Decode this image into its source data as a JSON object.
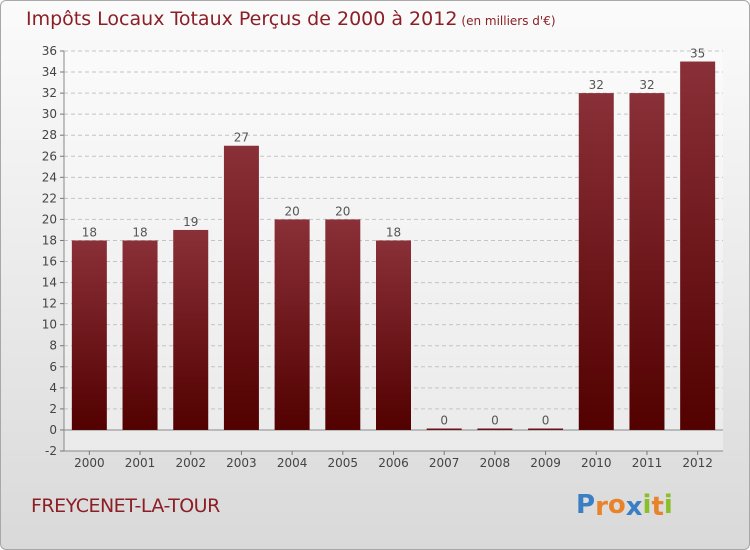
{
  "title": {
    "main": "Impôts Locaux Totaux Perçus de 2000 à 2012",
    "unit": "(en milliers d'€)"
  },
  "commune": "FREYCENET-LA-TOUR",
  "logo": {
    "letters": [
      "P",
      "r",
      "o",
      "x",
      "i",
      "t",
      "i"
    ],
    "colors": [
      "#3a7fc4",
      "#e8832a",
      "#e8832a",
      "#3a7fc4",
      "#8bbf2a",
      "#e8832a",
      "#8bbf2a"
    ]
  },
  "colors": {
    "bar_top": "#8a3038",
    "bar_bottom": "#520000",
    "text": "#8c1f26"
  },
  "chart_data": {
    "type": "bar",
    "categories": [
      "2000",
      "2001",
      "2002",
      "2003",
      "2004",
      "2005",
      "2006",
      "2007",
      "2008",
      "2009",
      "2010",
      "2011",
      "2012"
    ],
    "values": [
      18,
      18,
      19,
      27,
      20,
      20,
      18,
      0,
      0,
      0,
      32,
      32,
      35
    ],
    "data_labels": [
      "18",
      "18",
      "19",
      "27",
      "20",
      "20",
      "18",
      "0",
      "0",
      "0",
      "32",
      "32",
      "35"
    ],
    "ylim": [
      -2,
      36
    ],
    "yticks": [
      -2,
      0,
      2,
      4,
      6,
      8,
      10,
      12,
      14,
      16,
      18,
      20,
      22,
      24,
      26,
      28,
      30,
      32,
      34,
      36
    ],
    "grid": "horizontal-dashed",
    "legend": "none"
  }
}
